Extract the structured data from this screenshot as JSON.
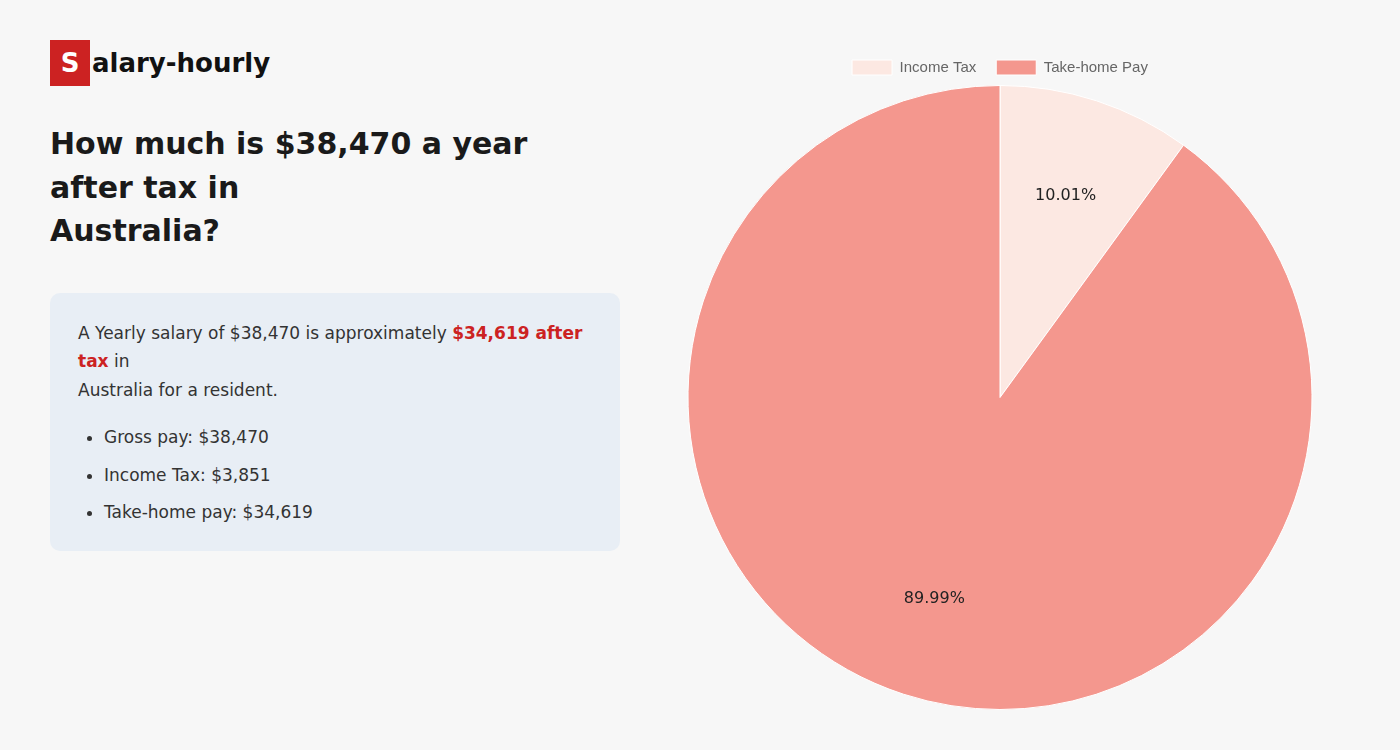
{
  "chart_data": {
    "type": "pie",
    "title": "How much is $38,470 a year after tax in\nAustralia?",
    "categories": [
      "Income Tax",
      "Take-home Pay"
    ],
    "values": [
      10.01,
      89.99
    ],
    "value_labels": [
      "10.01%",
      "89.99%"
    ],
    "colors": [
      "#fce8e2",
      "#f4978e"
    ],
    "data_labels": true,
    "legend": "top",
    "annotations": [
      {
        "text": "S",
        "color": "#cc2222"
      },
      {
        "text": "alary-hourly"
      },
      {
        "text": "A Yearly salary of $38,470 is approximately "
      },
      {
        "text": "$34,619 after tax",
        "color": "#cc2222"
      },
      {
        "text": " in"
      },
      {
        "text": "Australia for a resident."
      },
      {
        "text": "Gross pay: $38,470"
      },
      {
        "text": "Income Tax: $3,851"
      },
      {
        "text": "Take-home pay: $34,619"
      }
    ]
  }
}
